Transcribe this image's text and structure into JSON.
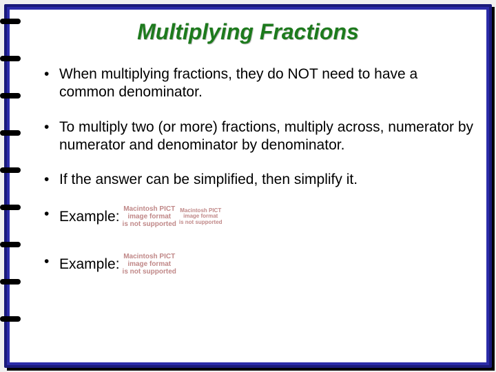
{
  "slide": {
    "title": "Multiplying Fractions",
    "title_color": "#1d7a1d",
    "title_fontsize": 32,
    "border_color": "#2b2ba8",
    "background_color": "#ffffff",
    "bullets": [
      {
        "text": "When multiplying fractions, they do NOT need to have a common denominator."
      },
      {
        "text": "To multiply two (or more) fractions, multiply across, numerator by numerator and denominator by denominator."
      },
      {
        "text": "If the answer can be simplified, then simplify it."
      },
      {
        "text": "Example:",
        "has_broken_image": true
      },
      {
        "text": "Example:",
        "has_broken_image": true
      }
    ],
    "body_fontsize": 21,
    "body_color": "#000000",
    "broken_image_text": {
      "line1": "Macintosh PICT",
      "line2": "image format",
      "line3": "is not supported"
    },
    "broken_image_color": "#c08888",
    "spiral": {
      "ring_count": 9,
      "ring_spacing": 54,
      "ring_color": "#000000"
    }
  }
}
